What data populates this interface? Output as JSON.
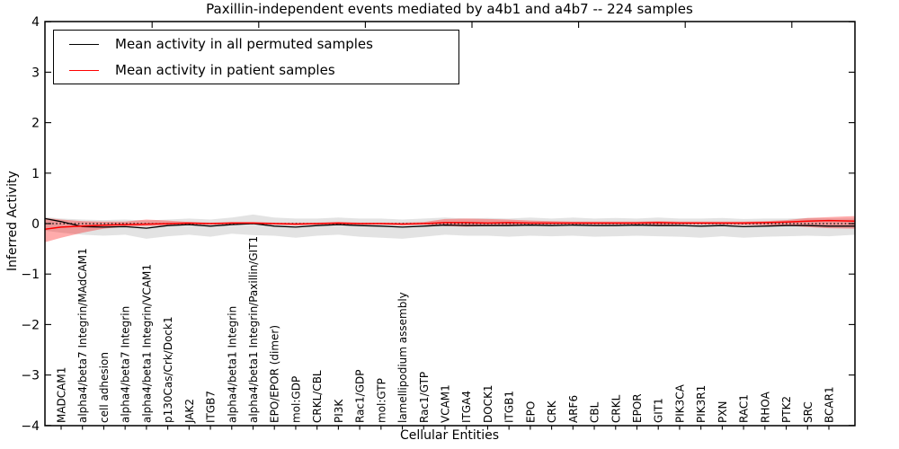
{
  "title": "Paxillin-independent events mediated by a4b1 and a4b7 -- 224 samples",
  "colors": {
    "black_line": "#000000",
    "red_line": "#ff0000",
    "gray_band": "#000000",
    "red_band": "#ff0000",
    "axis": "#000000"
  },
  "chart_data": {
    "type": "line",
    "title": "Paxillin-independent events mediated by a4b1 and a4b7 -- 224 samples",
    "xlabel": "Cellular Entities",
    "ylabel": "Inferred Activity",
    "ylim": [
      -4,
      4
    ],
    "ytick_labels": [
      "4",
      "3",
      "2",
      "1",
      "0",
      "−1",
      "−2",
      "−3",
      "−4"
    ],
    "ytick_values": [
      4,
      3,
      2,
      1,
      0,
      -1,
      -2,
      -3,
      -4
    ],
    "grid": false,
    "legend_position": "upper left",
    "zero_line": 0,
    "categories": [
      "MADCAM1",
      "alpha4/beta7 Integrin/MAdCAM1",
      "cell adhesion",
      "alpha4/beta7 Integrin",
      "alpha4/beta1 Integrin/VCAM1",
      "p130Cas/Crk/Dock1",
      "JAK2",
      "ITGB7",
      "alpha4/beta1 Integrin",
      "alpha4/beta1 Integrin/Paxillin/GIT1",
      "EPO/EPOR (dimer)",
      "mol:GDP",
      "CRKL/CBL",
      "PI3K",
      "Rac1/GDP",
      "mol:GTP",
      "lamellipodium assembly",
      "Rac1/GTP",
      "VCAM1",
      "ITGA4",
      "DOCK1",
      "ITGB1",
      "EPO",
      "CRK",
      "ARF6",
      "CBL",
      "CRKL",
      "EPOR",
      "GIT1",
      "PIK3CA",
      "PIK3R1",
      "PXN",
      "RAC1",
      "RHOA",
      "PTK2",
      "SRC",
      "BCAR1"
    ],
    "series": [
      {
        "name": "Mean activity in all permuted samples",
        "color": "#000000",
        "line_width": 1.3,
        "values": [
          0.04,
          -0.06,
          -0.07,
          -0.06,
          -0.09,
          -0.04,
          -0.02,
          -0.05,
          -0.02,
          0.0,
          -0.05,
          -0.07,
          -0.04,
          -0.02,
          -0.04,
          -0.05,
          -0.07,
          -0.05,
          -0.03,
          -0.04,
          -0.04,
          -0.04,
          -0.03,
          -0.04,
          -0.03,
          -0.04,
          -0.04,
          -0.03,
          -0.04,
          -0.04,
          -0.05,
          -0.04,
          -0.06,
          -0.05,
          -0.04,
          -0.04,
          -0.05
        ],
        "band_upper": [
          0.1,
          0.08,
          0.07,
          0.08,
          0.06,
          0.08,
          0.1,
          0.08,
          0.12,
          0.18,
          0.12,
          0.1,
          0.1,
          0.12,
          0.1,
          0.1,
          0.08,
          0.1,
          0.12,
          0.1,
          0.11,
          0.1,
          0.12,
          0.1,
          0.12,
          0.1,
          0.11,
          0.1,
          0.12,
          0.1,
          0.1,
          0.11,
          0.09,
          0.1,
          0.1,
          0.11,
          0.1
        ],
        "band_lower": [
          -0.18,
          -0.22,
          -0.24,
          -0.22,
          -0.3,
          -0.25,
          -0.22,
          -0.26,
          -0.2,
          -0.23,
          -0.24,
          -0.28,
          -0.24,
          -0.22,
          -0.26,
          -0.28,
          -0.3,
          -0.26,
          -0.22,
          -0.24,
          -0.24,
          -0.26,
          -0.24,
          -0.25,
          -0.24,
          -0.26,
          -0.25,
          -0.24,
          -0.25,
          -0.26,
          -0.28,
          -0.25,
          -0.28,
          -0.26,
          -0.25,
          -0.24,
          -0.25
        ],
        "band_opacity": 0.11,
        "edge_left": {
          "value": 0.1,
          "upper": 0.13,
          "lower": -0.14
        },
        "edge_right": {
          "value": -0.05,
          "upper": 0.1,
          "lower": -0.22
        }
      },
      {
        "name": "Mean activity in patient samples",
        "color": "#ff0000",
        "line_width": 1.5,
        "values": [
          -0.07,
          -0.05,
          -0.03,
          -0.02,
          -0.01,
          0.0,
          0.01,
          0.0,
          0.01,
          0.01,
          0.0,
          -0.01,
          0.0,
          0.01,
          0.0,
          0.0,
          -0.01,
          0.0,
          0.02,
          0.02,
          0.01,
          0.02,
          0.01,
          0.01,
          0.01,
          0.01,
          0.01,
          0.01,
          0.02,
          0.01,
          0.01,
          0.01,
          0.01,
          0.02,
          0.03,
          0.05,
          0.06
        ],
        "band_upper": [
          0.08,
          0.05,
          0.04,
          0.04,
          0.08,
          0.06,
          0.03,
          0.02,
          0.03,
          0.03,
          0.02,
          0.02,
          0.02,
          0.03,
          0.02,
          0.02,
          0.02,
          0.03,
          0.09,
          0.1,
          0.09,
          0.08,
          0.06,
          0.05,
          0.04,
          0.04,
          0.04,
          0.04,
          0.05,
          0.04,
          0.04,
          0.04,
          0.04,
          0.05,
          0.07,
          0.11,
          0.13
        ],
        "band_lower": [
          -0.28,
          -0.18,
          -0.1,
          -0.06,
          -0.05,
          -0.04,
          -0.02,
          -0.02,
          -0.01,
          -0.01,
          -0.02,
          -0.03,
          -0.02,
          -0.01,
          -0.02,
          -0.02,
          -0.03,
          -0.02,
          -0.05,
          -0.06,
          -0.05,
          -0.04,
          -0.03,
          -0.02,
          -0.02,
          -0.02,
          -0.02,
          -0.02,
          -0.03,
          -0.02,
          -0.02,
          -0.02,
          -0.03,
          -0.03,
          -0.04,
          -0.07,
          -0.09
        ],
        "band_opacity": 0.33,
        "edge_left": {
          "value": -0.11,
          "upper": 0.11,
          "lower": -0.37
        },
        "edge_right": {
          "value": 0.05,
          "upper": 0.15,
          "lower": -0.1
        }
      }
    ]
  }
}
